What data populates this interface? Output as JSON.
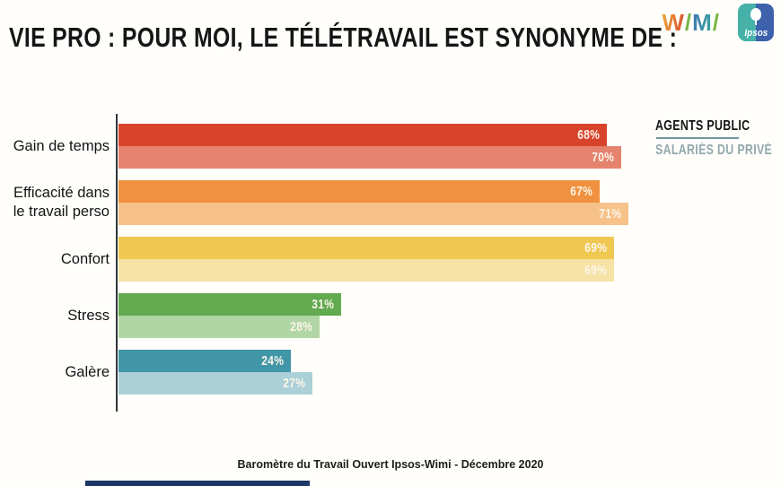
{
  "header": {
    "title": "VIE PRO : POUR MOI, LE TÉLÉTRAVAIL EST SYNONYME DE :"
  },
  "wimi_logo": {
    "alt": "Wimi",
    "letters": [
      {
        "ch": "W",
        "colors": [
          "#f0b13c",
          "#d8432c"
        ]
      },
      {
        "ch": "/",
        "colors": [
          "#7ab648"
        ]
      },
      {
        "ch": "M",
        "colors": [
          "#3f74b4",
          "#3aa89b"
        ]
      },
      {
        "ch": "/",
        "colors": [
          "#7ab648"
        ]
      }
    ]
  },
  "ipsos_logo": {
    "text": "Ipsos",
    "left_color": "#45b1a8",
    "right_color": "#3d62ab"
  },
  "legend": {
    "series1": "AGENTS PUBLIC",
    "series2": "SALARIÉS DU PRIVÉ",
    "series1_color": "#131313",
    "series2_color": "#92a8ad",
    "underline_color": "#6f979e"
  },
  "footer": {
    "source": "Baromètre du Travail Ouvert Ipsos-Wimi - Décembre 2020"
  },
  "bottom_strip_color": "#1c3667",
  "chart_data": {
    "type": "bar",
    "orientation": "horizontal",
    "title": "VIE PRO : POUR MOI, LE TÉLÉTRAVAIL EST SYNONYME DE :",
    "categories": [
      "Gain de temps",
      "Efficacité dans le travail perso",
      "Confort",
      "Stress",
      "Galère"
    ],
    "series": [
      {
        "name": "AGENTS PUBLIC",
        "values": [
          68,
          67,
          69,
          31,
          24
        ],
        "colors": [
          "#d8432c",
          "#f0913f",
          "#f0c851",
          "#61aa50",
          "#4196a7"
        ]
      },
      {
        "name": "SALARIÉS DU PRIVÉ",
        "values": [
          70,
          71,
          69,
          28,
          27
        ],
        "colors": [
          "#e5836e",
          "#f6c28a",
          "#f6e2a6",
          "#b1d6a5",
          "#abd0d8"
        ]
      }
    ],
    "value_suffix": "%",
    "value_label_color": "#fcf5e9",
    "axis_color": "#30363a",
    "xlim": [
      0,
      100
    ],
    "grid": false,
    "legend_position": "right"
  }
}
